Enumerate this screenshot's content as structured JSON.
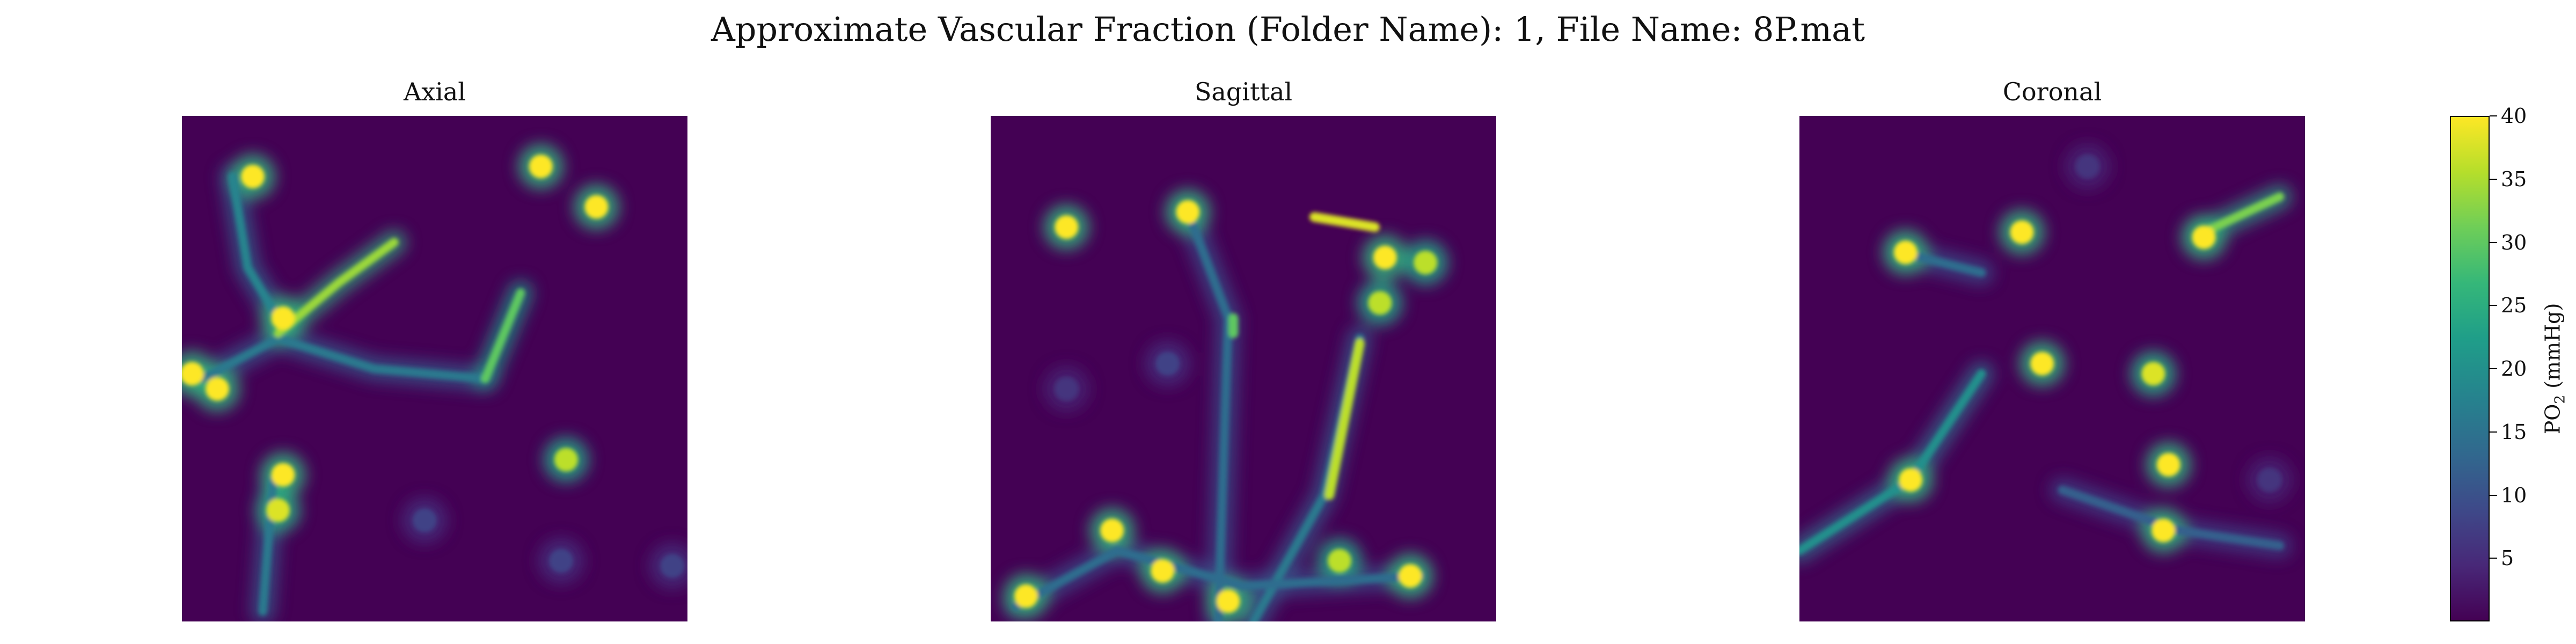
{
  "figure": {
    "title": "Approximate Vascular Fraction (Folder Name): 1, File Name: 8P.mat"
  },
  "colorbar": {
    "label_prefix": "PO",
    "label_subscript": "2",
    "label_suffix": " (mmHg)",
    "range": [
      0,
      40
    ],
    "ticks": [
      "5",
      "10",
      "15",
      "20",
      "25",
      "30",
      "35",
      "40"
    ],
    "colormap": "viridis"
  },
  "chart_data": [
    {
      "type": "heatmap",
      "title": "Axial",
      "colormap": "viridis",
      "clim": [
        0,
        40
      ],
      "grid": false,
      "axes_visible": false,
      "vessels": [
        {
          "points": [
            [
              0.04,
              0.52
            ],
            [
              0.19,
              0.44
            ],
            [
              0.38,
              0.5
            ],
            [
              0.6,
              0.52
            ]
          ],
          "po2": 16
        },
        {
          "points": [
            [
              0.19,
              0.43
            ],
            [
              0.31,
              0.33
            ],
            [
              0.42,
              0.25
            ]
          ],
          "po2": 34
        },
        {
          "points": [
            [
              0.1,
              0.12
            ],
            [
              0.13,
              0.3
            ],
            [
              0.19,
              0.4
            ]
          ],
          "po2": 18
        },
        {
          "points": [
            [
              0.6,
              0.52
            ],
            [
              0.67,
              0.35
            ]
          ],
          "po2": 30
        },
        {
          "points": [
            [
              0.18,
              0.72
            ],
            [
              0.17,
              0.85
            ],
            [
              0.16,
              0.98
            ]
          ],
          "po2": 16
        }
      ],
      "spots": [
        {
          "x": 0.14,
          "y": 0.12,
          "po2": 40
        },
        {
          "x": 0.71,
          "y": 0.1,
          "po2": 40
        },
        {
          "x": 0.82,
          "y": 0.18,
          "po2": 40
        },
        {
          "x": 0.2,
          "y": 0.4,
          "po2": 40
        },
        {
          "x": 0.02,
          "y": 0.51,
          "po2": 40
        },
        {
          "x": 0.07,
          "y": 0.54,
          "po2": 40
        },
        {
          "x": 0.2,
          "y": 0.71,
          "po2": 40
        },
        {
          "x": 0.19,
          "y": 0.78,
          "po2": 38
        },
        {
          "x": 0.76,
          "y": 0.68,
          "po2": 36
        },
        {
          "x": 0.48,
          "y": 0.8,
          "po2": 8
        },
        {
          "x": 0.75,
          "y": 0.88,
          "po2": 8
        },
        {
          "x": 0.97,
          "y": 0.89,
          "po2": 8
        }
      ]
    },
    {
      "type": "heatmap",
      "title": "Sagittal",
      "colormap": "viridis",
      "clim": [
        0,
        40
      ],
      "grid": false,
      "axes_visible": false,
      "vessels": [
        {
          "points": [
            [
              0.39,
              0.19
            ],
            [
              0.47,
              0.4
            ],
            [
              0.45,
              1.0
            ]
          ],
          "po2": 14
        },
        {
          "points": [
            [
              0.73,
              0.44
            ],
            [
              0.66,
              0.75
            ],
            [
              0.52,
              1.0
            ]
          ],
          "po2": 16
        },
        {
          "points": [
            [
              0.05,
              0.97
            ],
            [
              0.25,
              0.86
            ],
            [
              0.5,
              0.93
            ],
            [
              0.85,
              0.91
            ]
          ],
          "po2": 14
        }
      ],
      "segments": [
        {
          "points": [
            [
              0.64,
              0.2
            ],
            [
              0.76,
              0.22
            ]
          ],
          "po2": 38
        },
        {
          "points": [
            [
              0.73,
              0.45
            ],
            [
              0.67,
              0.75
            ]
          ],
          "po2": 36
        },
        {
          "points": [
            [
              0.48,
              0.4
            ],
            [
              0.48,
              0.43
            ]
          ],
          "po2": 30
        }
      ],
      "spots": [
        {
          "x": 0.15,
          "y": 0.22,
          "po2": 40
        },
        {
          "x": 0.39,
          "y": 0.19,
          "po2": 40
        },
        {
          "x": 0.78,
          "y": 0.28,
          "po2": 40
        },
        {
          "x": 0.86,
          "y": 0.29,
          "po2": 36
        },
        {
          "x": 0.77,
          "y": 0.37,
          "po2": 36
        },
        {
          "x": 0.35,
          "y": 0.49,
          "po2": 8
        },
        {
          "x": 0.15,
          "y": 0.54,
          "po2": 6
        },
        {
          "x": 0.24,
          "y": 0.82,
          "po2": 40
        },
        {
          "x": 0.34,
          "y": 0.9,
          "po2": 40
        },
        {
          "x": 0.47,
          "y": 0.96,
          "po2": 40
        },
        {
          "x": 0.07,
          "y": 0.95,
          "po2": 40
        },
        {
          "x": 0.69,
          "y": 0.88,
          "po2": 36
        },
        {
          "x": 0.83,
          "y": 0.91,
          "po2": 40
        }
      ]
    },
    {
      "type": "heatmap",
      "title": "Coronal",
      "colormap": "viridis",
      "clim": [
        0,
        40
      ],
      "grid": false,
      "axes_visible": false,
      "vessels": [
        {
          "points": [
            [
              0.0,
              0.86
            ],
            [
              0.22,
              0.72
            ],
            [
              0.36,
              0.51
            ]
          ],
          "po2": 20
        },
        {
          "points": [
            [
              0.2,
              0.27
            ],
            [
              0.36,
              0.31
            ]
          ],
          "po2": 14
        },
        {
          "points": [
            [
              0.8,
              0.23
            ],
            [
              0.95,
              0.16
            ]
          ],
          "po2": 32
        },
        {
          "points": [
            [
              0.52,
              0.74
            ],
            [
              0.75,
              0.82
            ],
            [
              0.95,
              0.85
            ]
          ],
          "po2": 12
        }
      ],
      "spots": [
        {
          "x": 0.21,
          "y": 0.27,
          "po2": 40
        },
        {
          "x": 0.44,
          "y": 0.23,
          "po2": 40
        },
        {
          "x": 0.8,
          "y": 0.24,
          "po2": 40
        },
        {
          "x": 0.57,
          "y": 0.1,
          "po2": 6
        },
        {
          "x": 0.48,
          "y": 0.49,
          "po2": 40
        },
        {
          "x": 0.7,
          "y": 0.51,
          "po2": 38
        },
        {
          "x": 0.22,
          "y": 0.72,
          "po2": 40
        },
        {
          "x": 0.73,
          "y": 0.69,
          "po2": 40
        },
        {
          "x": 0.72,
          "y": 0.82,
          "po2": 40
        },
        {
          "x": 0.93,
          "y": 0.72,
          "po2": 6
        }
      ]
    }
  ]
}
